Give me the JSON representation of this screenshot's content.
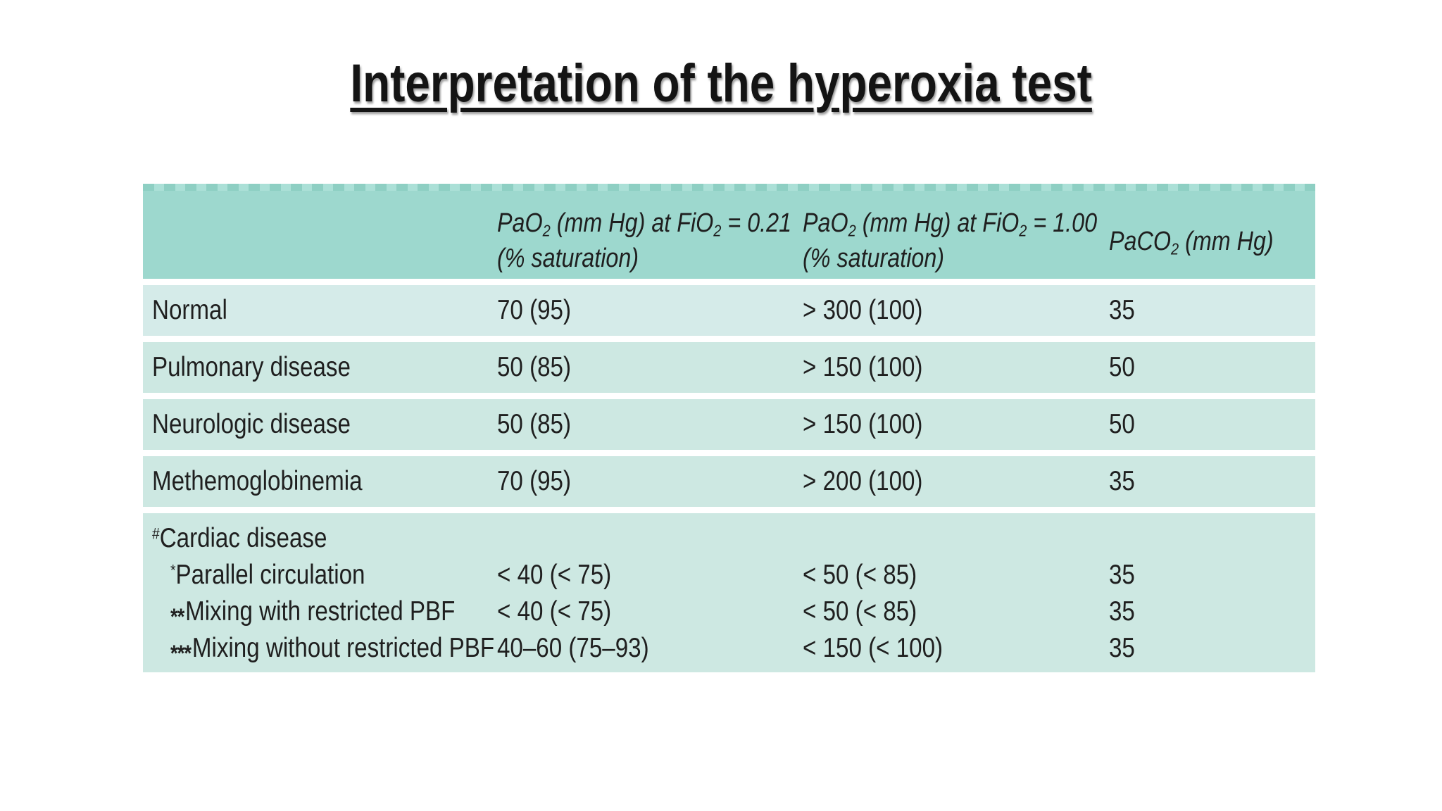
{
  "title": "Interpretation of the hyperoxia test",
  "colors": {
    "header-bg": "#9dd8ce",
    "header-dash-dark": "#8ecfc3",
    "header-dash-light": "#abe0d7",
    "row-bg": "#cde8e2",
    "row-first-bg": "#d5ebe9",
    "text": "#1f1f1f",
    "title-color": "#141414"
  },
  "table": {
    "headers": {
      "col2": {
        "base": "PaO",
        "sub1": "2",
        "mid": " (mm Hg) at FiO",
        "sub2": "2",
        "end": " = 0.21",
        "line2": "(% saturation)"
      },
      "col3": {
        "base": "PaO",
        "sub1": "2",
        "mid": " (mm Hg) at FiO",
        "sub2": "2",
        "end": " = 1.00",
        "line2": "(% saturation)"
      },
      "col4": {
        "base": "PaCO",
        "sub1": "2",
        "end": " (mm Hg)"
      }
    },
    "rows": [
      {
        "label": "Normal",
        "pao2_021": "70 (95)",
        "pao2_100": "> 300 (100)",
        "paco2": "35"
      },
      {
        "label": "Pulmonary disease",
        "pao2_021": "50 (85)",
        "pao2_100": "> 150 (100)",
        "paco2": "50"
      },
      {
        "label": "Neurologic disease",
        "pao2_021": "50 (85)",
        "pao2_100": "> 150 (100)",
        "paco2": "50"
      },
      {
        "label": "Methemoglobinemia",
        "pao2_021": "70 (95)",
        "pao2_100": "> 200 (100)",
        "paco2": "35"
      }
    ],
    "cardiac": {
      "prefix": "#",
      "label": "Cardiac disease",
      "subrows": [
        {
          "prefix": "*",
          "label": "Parallel circulation",
          "pao2_021": "< 40 (< 75)",
          "pao2_100": "< 50 (< 85)",
          "paco2": "35"
        },
        {
          "prefix": "**",
          "label": "Mixing with restricted PBF",
          "pao2_021": "< 40 (< 75)",
          "pao2_100": "< 50 (< 85)",
          "paco2": "35"
        },
        {
          "prefix": "***",
          "label": "Mixing without restricted PBF",
          "pao2_021": "40–60 (75–93)",
          "pao2_100": "< 150 (< 100)",
          "paco2": "35"
        }
      ]
    }
  }
}
